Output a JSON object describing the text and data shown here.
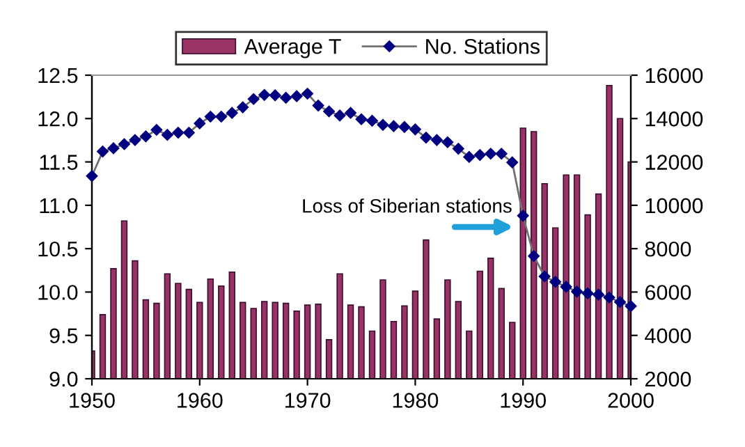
{
  "chart_data": {
    "type": "bar",
    "x": [
      1950,
      1951,
      1952,
      1953,
      1954,
      1955,
      1956,
      1957,
      1958,
      1959,
      1960,
      1961,
      1962,
      1963,
      1964,
      1965,
      1966,
      1967,
      1968,
      1969,
      1970,
      1971,
      1972,
      1973,
      1974,
      1975,
      1976,
      1977,
      1978,
      1979,
      1980,
      1981,
      1982,
      1983,
      1984,
      1985,
      1986,
      1987,
      1988,
      1989,
      1990,
      1991,
      1992,
      1993,
      1994,
      1995,
      1996,
      1997,
      1998,
      1999,
      2000
    ],
    "series": [
      {
        "name": "Average T",
        "color": "#993366",
        "values": [
          9.32,
          9.74,
          10.27,
          10.82,
          10.36,
          9.91,
          9.87,
          10.21,
          10.1,
          10.03,
          9.88,
          10.15,
          10.07,
          10.23,
          9.88,
          9.81,
          9.89,
          9.88,
          9.87,
          9.78,
          9.85,
          9.86,
          9.45,
          10.21,
          9.85,
          9.83,
          9.55,
          10.14,
          9.66,
          9.84,
          10.01,
          10.6,
          9.69,
          10.14,
          9.89,
          9.55,
          10.24,
          10.39,
          10.04,
          9.65,
          11.89,
          11.85,
          11.25,
          10.74,
          11.35,
          11.35,
          10.89,
          11.13,
          12.38,
          12.0,
          11.5
        ]
      },
      {
        "name": "No. Stations",
        "type": "line",
        "axis": "y2",
        "color": "#000080",
        "marker": "diamond",
        "line_style": "solid",
        "values": [
          11350,
          12480,
          12630,
          12820,
          13010,
          13180,
          13480,
          13250,
          13350,
          13350,
          13780,
          14090,
          14090,
          14260,
          14520,
          14900,
          15090,
          15070,
          14960,
          15030,
          15150,
          14600,
          14330,
          14140,
          14260,
          13970,
          13900,
          13710,
          13650,
          13610,
          13500,
          13120,
          13010,
          12910,
          12610,
          12230,
          12320,
          12380,
          12380,
          11980,
          9520,
          7660,
          6720,
          6470,
          6240,
          6020,
          5940,
          5880,
          5750,
          5540,
          5350
        ]
      }
    ],
    "xlim": [
      1950,
      2000
    ],
    "xticks": [
      1950,
      1960,
      1970,
      1980,
      1990,
      2000
    ],
    "ylim": [
      9,
      12.5
    ],
    "yticks": [
      {
        "value": 9,
        "label": "9.0"
      },
      9.5,
      {
        "value": 10,
        "label": "10.0"
      },
      10.5,
      {
        "value": 11,
        "label": "11.0"
      },
      11.5,
      {
        "value": 12,
        "label": "12.0"
      },
      12.5
    ],
    "y2lim": [
      2000,
      16000
    ],
    "y2ticks": [
      2000,
      4000,
      6000,
      8000,
      10000,
      12000,
      14000,
      16000
    ],
    "annotations": [
      {
        "text": "Loss of Siberian stations",
        "x": 1989.5,
        "y": 10.75
      }
    ],
    "legend": "top",
    "grid": false
  }
}
